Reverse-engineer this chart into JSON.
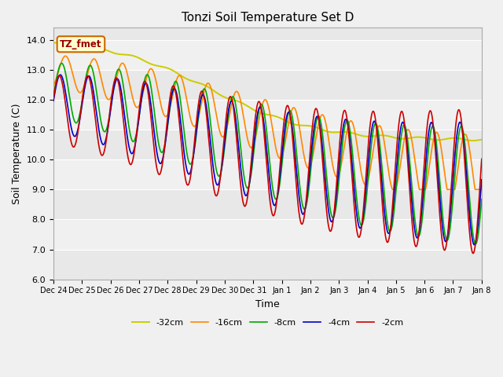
{
  "title": "Tonzi Soil Temperature Set D",
  "xlabel": "Time",
  "ylabel": "Soil Temperature (C)",
  "ylim": [
    6.0,
    14.4
  ],
  "legend_label": "TZ_fmet",
  "series": {
    "-2cm": {
      "color": "#cc0000",
      "label": "-2cm"
    },
    "-4cm": {
      "color": "#0000cc",
      "label": "-4cm"
    },
    "-8cm": {
      "color": "#00aa00",
      "label": "-8cm"
    },
    "-16cm": {
      "color": "#ff8800",
      "label": "-16cm"
    },
    "-32cm": {
      "color": "#cccc00",
      "label": "-32cm"
    }
  },
  "tick_labels": [
    "Dec 24",
    "Dec 25",
    "Dec 26",
    "Dec 27",
    "Dec 28",
    "Dec 29",
    "Dec 30",
    "Dec 31",
    "Jan 1",
    "Jan 2",
    "Jan 3",
    "Jan 4",
    "Jan 5",
    "Jan 6",
    "Jan 7",
    "Jan 8"
  ],
  "bg_band_colors": [
    "#e8e8e8",
    "#f0f0f0"
  ],
  "fig_bg": "#f0f0f0"
}
